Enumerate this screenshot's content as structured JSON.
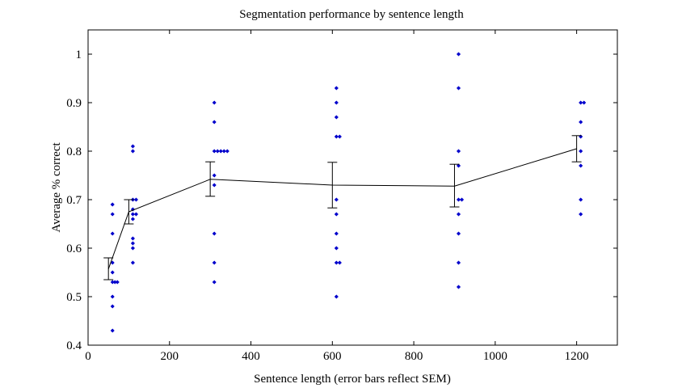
{
  "chart_data": {
    "type": "scatter",
    "title": "Segmentation performance by sentence length",
    "xlabel": "Sentence length (error bars reflect SEM)",
    "ylabel": "Average % correct",
    "xlim": [
      0,
      1300
    ],
    "ylim": [
      0.4,
      1.05
    ],
    "xticks": [
      0,
      200,
      400,
      600,
      800,
      1000,
      1200
    ],
    "yticks": [
      0.4,
      0.5,
      0.6,
      0.7,
      0.8,
      0.9,
      1
    ],
    "xtick_labels": [
      "0",
      "200",
      "400",
      "600",
      "800",
      "1000",
      "1200"
    ],
    "ytick_labels": [
      "0.4",
      "0.5",
      "0.6",
      "0.7",
      "0.8",
      "0.9",
      "1"
    ],
    "grid": false,
    "points_color": "#0000cc",
    "line_color": "#000000",
    "scatter_points": [
      {
        "x": 60,
        "y": 0.69
      },
      {
        "x": 60,
        "y": 0.67
      },
      {
        "x": 60,
        "y": 0.63
      },
      {
        "x": 60,
        "y": 0.57
      },
      {
        "x": 60,
        "y": 0.55
      },
      {
        "x": 60,
        "y": 0.53
      },
      {
        "x": 66,
        "y": 0.53
      },
      {
        "x": 72,
        "y": 0.53
      },
      {
        "x": 60,
        "y": 0.5
      },
      {
        "x": 60,
        "y": 0.48
      },
      {
        "x": 60,
        "y": 0.43
      },
      {
        "x": 60,
        "y": 0.69
      },
      {
        "x": 110,
        "y": 0.81
      },
      {
        "x": 110,
        "y": 0.8
      },
      {
        "x": 110,
        "y": 0.7
      },
      {
        "x": 118,
        "y": 0.7
      },
      {
        "x": 110,
        "y": 0.68
      },
      {
        "x": 110,
        "y": 0.67
      },
      {
        "x": 118,
        "y": 0.67
      },
      {
        "x": 110,
        "y": 0.66
      },
      {
        "x": 110,
        "y": 0.62
      },
      {
        "x": 110,
        "y": 0.61
      },
      {
        "x": 110,
        "y": 0.6
      },
      {
        "x": 110,
        "y": 0.57
      },
      {
        "x": 310,
        "y": 0.9
      },
      {
        "x": 310,
        "y": 0.86
      },
      {
        "x": 310,
        "y": 0.8
      },
      {
        "x": 318,
        "y": 0.8
      },
      {
        "x": 326,
        "y": 0.8
      },
      {
        "x": 334,
        "y": 0.8
      },
      {
        "x": 342,
        "y": 0.8
      },
      {
        "x": 310,
        "y": 0.75
      },
      {
        "x": 310,
        "y": 0.73
      },
      {
        "x": 310,
        "y": 0.63
      },
      {
        "x": 310,
        "y": 0.57
      },
      {
        "x": 310,
        "y": 0.53
      },
      {
        "x": 610,
        "y": 0.93
      },
      {
        "x": 610,
        "y": 0.9
      },
      {
        "x": 610,
        "y": 0.87
      },
      {
        "x": 610,
        "y": 0.83
      },
      {
        "x": 618,
        "y": 0.83
      },
      {
        "x": 610,
        "y": 0.7
      },
      {
        "x": 610,
        "y": 0.67
      },
      {
        "x": 610,
        "y": 0.63
      },
      {
        "x": 610,
        "y": 0.6
      },
      {
        "x": 610,
        "y": 0.57
      },
      {
        "x": 618,
        "y": 0.57
      },
      {
        "x": 610,
        "y": 0.5
      },
      {
        "x": 910,
        "y": 1.0
      },
      {
        "x": 910,
        "y": 0.93
      },
      {
        "x": 910,
        "y": 0.8
      },
      {
        "x": 910,
        "y": 0.77
      },
      {
        "x": 910,
        "y": 0.7
      },
      {
        "x": 918,
        "y": 0.7
      },
      {
        "x": 910,
        "y": 0.67
      },
      {
        "x": 910,
        "y": 0.63
      },
      {
        "x": 910,
        "y": 0.57
      },
      {
        "x": 910,
        "y": 0.52
      },
      {
        "x": 1210,
        "y": 0.9
      },
      {
        "x": 1218,
        "y": 0.9
      },
      {
        "x": 1210,
        "y": 0.86
      },
      {
        "x": 1210,
        "y": 0.83
      },
      {
        "x": 1210,
        "y": 0.8
      },
      {
        "x": 1210,
        "y": 0.77
      },
      {
        "x": 1210,
        "y": 0.7
      },
      {
        "x": 1210,
        "y": 0.67
      }
    ],
    "mean_line": {
      "x": [
        50,
        100,
        300,
        600,
        900,
        1200
      ],
      "y": [
        0.557,
        0.675,
        0.742,
        0.73,
        0.728,
        0.805
      ]
    },
    "error_bars": [
      {
        "x": 50,
        "y": 0.557,
        "low": 0.535,
        "high": 0.58
      },
      {
        "x": 100,
        "y": 0.675,
        "low": 0.65,
        "high": 0.7
      },
      {
        "x": 300,
        "y": 0.742,
        "low": 0.707,
        "high": 0.778
      },
      {
        "x": 600,
        "y": 0.73,
        "low": 0.683,
        "high": 0.777
      },
      {
        "x": 900,
        "y": 0.728,
        "low": 0.685,
        "high": 0.773
      },
      {
        "x": 1200,
        "y": 0.805,
        "low": 0.778,
        "high": 0.832
      }
    ]
  }
}
